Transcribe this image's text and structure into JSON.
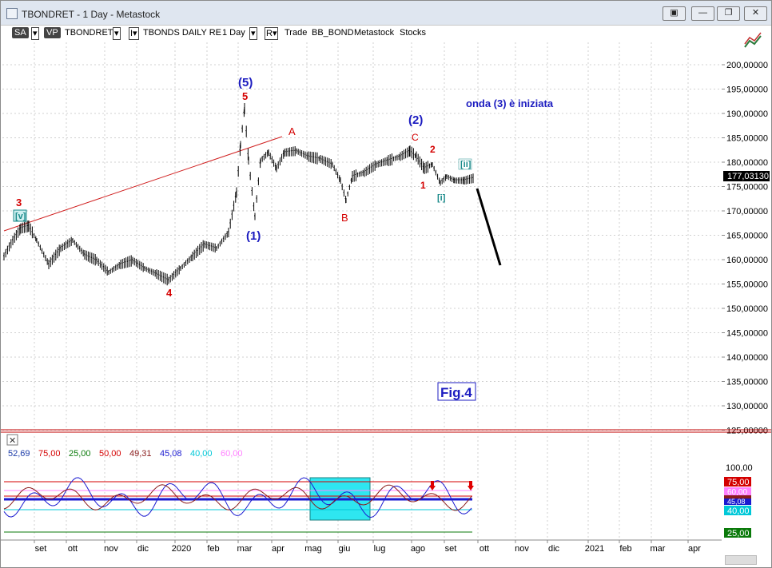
{
  "window": {
    "title": "TBONDRET - 1 Day - Metastock",
    "buttons": [
      "▣",
      "—",
      "❐",
      "✕"
    ]
  },
  "toolbar": {
    "sa_label": "SA",
    "vp_label": "VP",
    "symbol": "TBONDRET",
    "dropdown_glyph": "▾",
    "series_glyph": "I▾",
    "series_name": "TBONDS DAILY RE",
    "period": "1 Day",
    "mode_glyph": "R▾",
    "trade_label": "Trade",
    "indicator": "BB_BOND",
    "source": "Metastock",
    "type": "Stocks"
  },
  "annotations": {
    "wave5_top": "(5)",
    "wave5_red": "5",
    "wave_a": "A",
    "wave2": "(2)",
    "wave_c": "C",
    "wave_2_red": "2",
    "wave_ii": "[ii]",
    "wave_1_red": "1",
    "wave_i": "[i]",
    "wave_b": "B",
    "wave1": "(1)",
    "wave3_red": "3",
    "wave_v": "[v]",
    "wave4_red": "4",
    "note": "onda (3) è iniziata",
    "fig": "Fig.4"
  },
  "oscillator": {
    "close_glyph": "✕",
    "legend": [
      {
        "text": "52,69",
        "color": "#1a3aa8"
      },
      {
        "text": "75,00",
        "color": "#d40000"
      },
      {
        "text": "25,00",
        "color": "#0a7a0a"
      },
      {
        "text": "50,00",
        "color": "#d40000"
      },
      {
        "text": "49,31",
        "color": "#8a1c1c"
      },
      {
        "text": "45,08",
        "color": "#1a1ad0"
      },
      {
        "text": "40,00",
        "color": "#00c8d8"
      },
      {
        "text": "60,00",
        "color": "#ff80ff"
      }
    ],
    "axis_top": "100,00",
    "badges": {
      "b75": "75,00",
      "b60": "60,00",
      "b49": "49,31",
      "b45": "45,08",
      "b40": "40,00",
      "b25": "25,00"
    }
  },
  "price_axis": {
    "labels": [
      "200,00000",
      "195,00000",
      "190,00000",
      "185,00000",
      "180,00000",
      "175,00000",
      "170,00000",
      "165,00000",
      "160,00000",
      "155,00000",
      "150,00000",
      "145,00000",
      "140,00000",
      "135,00000",
      "130,00000",
      "125,00000"
    ],
    "last_price": "177,03130"
  },
  "time_axis": {
    "labels": [
      "set",
      "ott",
      "nov",
      "dic",
      "2020",
      "feb",
      "mar",
      "apr",
      "mag",
      "giu",
      "lug",
      "ago",
      "set",
      "ott",
      "nov",
      "dic",
      "2021",
      "feb",
      "mar",
      "apr"
    ]
  },
  "colors": {
    "bars": "#000000",
    "wave_blue": "#1c1cc0",
    "wave_red": "#d40000",
    "wave_teal": "#1a8a8a",
    "trendline": "#d02020",
    "highlight": "#2ee6f0"
  }
}
